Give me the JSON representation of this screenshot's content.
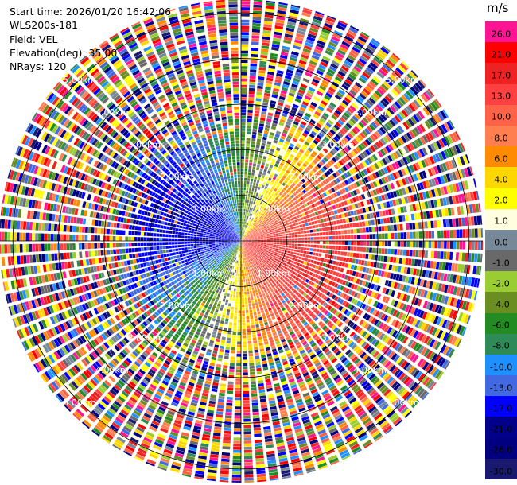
{
  "meta": {
    "start_time": "Start time: 2026/01/20 16:42:06",
    "station": "WLS200s-181",
    "field": "Field: VEL",
    "elevation": "Elevation(deg): 35.00",
    "nrays": "NRays: 120"
  },
  "colorbar": {
    "unit": "m/s",
    "levels": [
      {
        "label": "26.0",
        "color": "#ff1493"
      },
      {
        "label": "21.0",
        "color": "#ff0000"
      },
      {
        "label": "17.0",
        "color": "#ee2222"
      },
      {
        "label": "13.0",
        "color": "#ff4040"
      },
      {
        "label": "10.0",
        "color": "#ff6347"
      },
      {
        "label": "8.0",
        "color": "#ff7f50"
      },
      {
        "label": "6.0",
        "color": "#ff8c00"
      },
      {
        "label": "4.0",
        "color": "#ffd700"
      },
      {
        "label": "2.0",
        "color": "#ffff00"
      },
      {
        "label": "1.0",
        "color": "#ffffe0"
      },
      {
        "label": "0.0",
        "color": "#778899"
      },
      {
        "label": "-1.0",
        "color": "#696969"
      },
      {
        "label": "-2.0",
        "color": "#9acd32"
      },
      {
        "label": "-4.0",
        "color": "#6b8e23"
      },
      {
        "label": "-6.0",
        "color": "#228b22"
      },
      {
        "label": "-8.0",
        "color": "#2e8b57"
      },
      {
        "label": "-10.0",
        "color": "#1e90ff"
      },
      {
        "label": "-13.0",
        "color": "#4169e1"
      },
      {
        "label": "-17.0",
        "color": "#0000ff"
      },
      {
        "label": "-21.0",
        "color": "#00008b"
      },
      {
        "label": "-26.0",
        "color": "#000080"
      },
      {
        "label": "-30.0",
        "color": "#191970"
      }
    ]
  },
  "chart_data": {
    "type": "heatmap",
    "projection": "polar PPI",
    "field": "VEL",
    "elevation_deg": 35.0,
    "n_rays": 120,
    "range_rings_km": [
      1.0,
      2.0,
      3.0,
      4.0,
      5.0
    ],
    "ring_labels": [
      "1.00km",
      "2.00km",
      "3.00km",
      "4.00km",
      "5.00km"
    ],
    "max_range_km": 5.3,
    "pattern": {
      "description": "inner ~2 km shows coherent wind pattern: blue (approaching, -13 to -21 m/s) to the west/northwest, red/orange (receding, +8 to +13 m/s) to the east/southeast, green/yellow in between; beyond ~2.3 km the field is noise with random colors",
      "inner_coherent_radius_km": 2.3
    }
  }
}
